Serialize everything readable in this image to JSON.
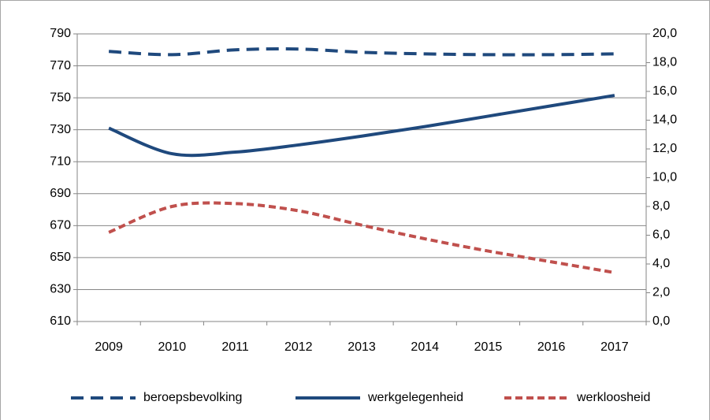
{
  "chart_data": {
    "type": "line",
    "categories": [
      "2009",
      "2010",
      "2011",
      "2012",
      "2013",
      "2014",
      "2015",
      "2016",
      "2017"
    ],
    "series": [
      {
        "name": "beroepsbevolking",
        "color": "#1f497d",
        "dash": "long",
        "values": [
          779,
          777,
          780,
          780.5,
          778.5,
          777.5,
          777,
          777,
          777.5
        ]
      },
      {
        "name": "werkgelegenheid",
        "color": "#1f497d",
        "dash": "solid",
        "values": [
          731,
          715,
          716,
          720.5,
          726,
          732,
          738.5,
          745,
          751.5
        ]
      },
      {
        "name": "werkloosheid",
        "color": "#c0504d",
        "dash": "short",
        "axis": "y2",
        "values": [
          6.2,
          8.0,
          8.2,
          7.7,
          6.7,
          5.75,
          4.9,
          4.15,
          3.4
        ]
      }
    ],
    "ylim": [
      610,
      790
    ],
    "yticks": [
      610,
      630,
      650,
      670,
      690,
      710,
      730,
      750,
      770,
      790
    ],
    "y2lim": [
      0,
      20
    ],
    "y2ticks": [
      {
        "value": 0,
        "label": "0,0"
      },
      {
        "value": 2,
        "label": "2,0"
      },
      {
        "value": 4,
        "label": "4,0"
      },
      {
        "value": 6,
        "label": "6,0"
      },
      {
        "value": 8,
        "label": "8,0"
      },
      {
        "value": 10,
        "label": "10,0"
      },
      {
        "value": 12,
        "label": "12,0"
      },
      {
        "value": 14,
        "label": "14,0"
      },
      {
        "value": 16,
        "label": "16,0"
      },
      {
        "value": 18,
        "label": "18,0"
      },
      {
        "value": 20,
        "label": "20,0"
      }
    ],
    "grid": true,
    "legend": "bottom"
  }
}
